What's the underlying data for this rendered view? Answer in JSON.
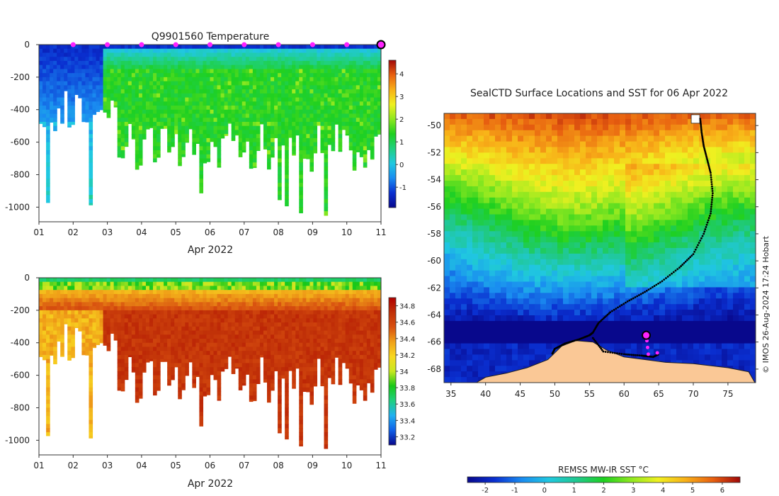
{
  "colors": {
    "temp_scale": [
      "#08088c",
      "#0a2fd0",
      "#1a8cf0",
      "#20c8e0",
      "#20d080",
      "#1ed020",
      "#8ee820",
      "#f0f020",
      "#f8b018",
      "#e86010",
      "#a00808"
    ],
    "sal_scale": [
      "#08088c",
      "#1060e8",
      "#20b0f0",
      "#20d080",
      "#18c818",
      "#c8e820",
      "#f8d820",
      "#f0a018",
      "#d85010",
      "#c03008",
      "#b00000"
    ],
    "sst_scale": [
      "#08088c",
      "#0a2fd0",
      "#1a8cf0",
      "#20c8e0",
      "#20c890",
      "#1ed020",
      "#8ee820",
      "#f0f020",
      "#f8b018",
      "#e86010",
      "#a00808"
    ],
    "land": "#fac896",
    "profile_marker": "#ff22ff",
    "track": "#000000"
  },
  "chart_data": [
    {
      "id": "temperature",
      "type": "heatmap",
      "title": "Q9901560  Temperature",
      "xlabel": "Apr 2022",
      "x_ticks": [
        "01",
        "02",
        "03",
        "04",
        "05",
        "06",
        "07",
        "08",
        "09",
        "10",
        "11"
      ],
      "xlim": [
        1,
        11
      ],
      "ylabel": "",
      "y_ticks": [
        0,
        -200,
        -400,
        -600,
        -800,
        -1000
      ],
      "ylim": [
        -1090,
        0
      ],
      "colorbar": {
        "min": -1.9,
        "max": 4.6,
        "ticks": [
          -1,
          0,
          1,
          2,
          3,
          4
        ],
        "labels": [
          "-1",
          "0",
          "1",
          "2",
          "3",
          "4"
        ]
      },
      "marker_days": [
        2,
        3,
        4,
        5,
        6,
        7,
        8,
        9,
        10
      ],
      "current_day": 11,
      "units": "°C"
    },
    {
      "id": "salinity",
      "type": "heatmap",
      "title": "",
      "xlabel": "Apr 2022",
      "x_ticks": [
        "01",
        "02",
        "03",
        "04",
        "05",
        "06",
        "07",
        "08",
        "09",
        "10",
        "11"
      ],
      "xlim": [
        1,
        11
      ],
      "ylabel": "",
      "y_ticks": [
        0,
        -200,
        -400,
        -600,
        -800,
        -1000
      ],
      "ylim": [
        -1090,
        0
      ],
      "colorbar": {
        "min": 33.1,
        "max": 34.9,
        "ticks": [
          33.2,
          33.4,
          33.6,
          33.8,
          34,
          34.2,
          34.4,
          34.6,
          34.8
        ],
        "labels": [
          "33.2",
          "33.4",
          "33.6",
          "33.8",
          "34",
          "34.2",
          "34.4",
          "34.6",
          "34.8"
        ]
      }
    },
    {
      "id": "sst_map",
      "type": "heatmap",
      "title": "SealCTD Surface Locations and SST for 06 Apr 2022",
      "x_ticks": [
        35,
        40,
        45,
        50,
        55,
        60,
        65,
        70,
        75
      ],
      "xlim": [
        34,
        79
      ],
      "y_ticks": [
        -50,
        -52,
        -54,
        -56,
        -58,
        -60,
        -62,
        -64,
        -66,
        -68
      ],
      "ylim": [
        -69,
        -49.1
      ],
      "colorbar": {
        "label": "REMSS MW-IR SST °C",
        "min": -2.6,
        "max": 6.6,
        "ticks": [
          -2,
          -1,
          0,
          1,
          2,
          3,
          4,
          5,
          6
        ],
        "labels": [
          "-2",
          "-1",
          "0",
          "1",
          "2",
          "3",
          "4",
          "5",
          "6"
        ]
      },
      "track": [
        [
          71,
          -49.5
        ],
        [
          71.2,
          -50.5
        ],
        [
          71.5,
          -51.5
        ],
        [
          72,
          -52.5
        ],
        [
          72.5,
          -53.5
        ],
        [
          72.8,
          -55
        ],
        [
          72.5,
          -56.5
        ],
        [
          71.5,
          -58
        ],
        [
          70,
          -59.5
        ],
        [
          68,
          -60.5
        ],
        [
          65.5,
          -61.5
        ],
        [
          63,
          -62.3
        ],
        [
          60.5,
          -63
        ],
        [
          58,
          -63.8
        ],
        [
          56.3,
          -64.6
        ],
        [
          55.5,
          -65.3
        ],
        [
          55,
          -65.5
        ],
        [
          53.5,
          -65.8
        ],
        [
          51.5,
          -66.1
        ],
        [
          50,
          -66.5
        ],
        [
          49.6,
          -66.9
        ]
      ],
      "return_track": [
        [
          55.5,
          -65.7
        ],
        [
          57,
          -66.7
        ],
        [
          60,
          -66.9
        ],
        [
          62.5,
          -67
        ],
        [
          64.2,
          -67.1
        ],
        [
          65,
          -66.9
        ]
      ],
      "profile_points": [
        [
          63.3,
          -65.9
        ],
        [
          63.4,
          -66.4
        ],
        [
          63.5,
          -66.9
        ],
        [
          64.8,
          -66.8
        ]
      ],
      "current_location": [
        63.2,
        -65.5
      ],
      "credit": "© IMOS 26-Aug-2024 17:24 Hobart"
    }
  ]
}
